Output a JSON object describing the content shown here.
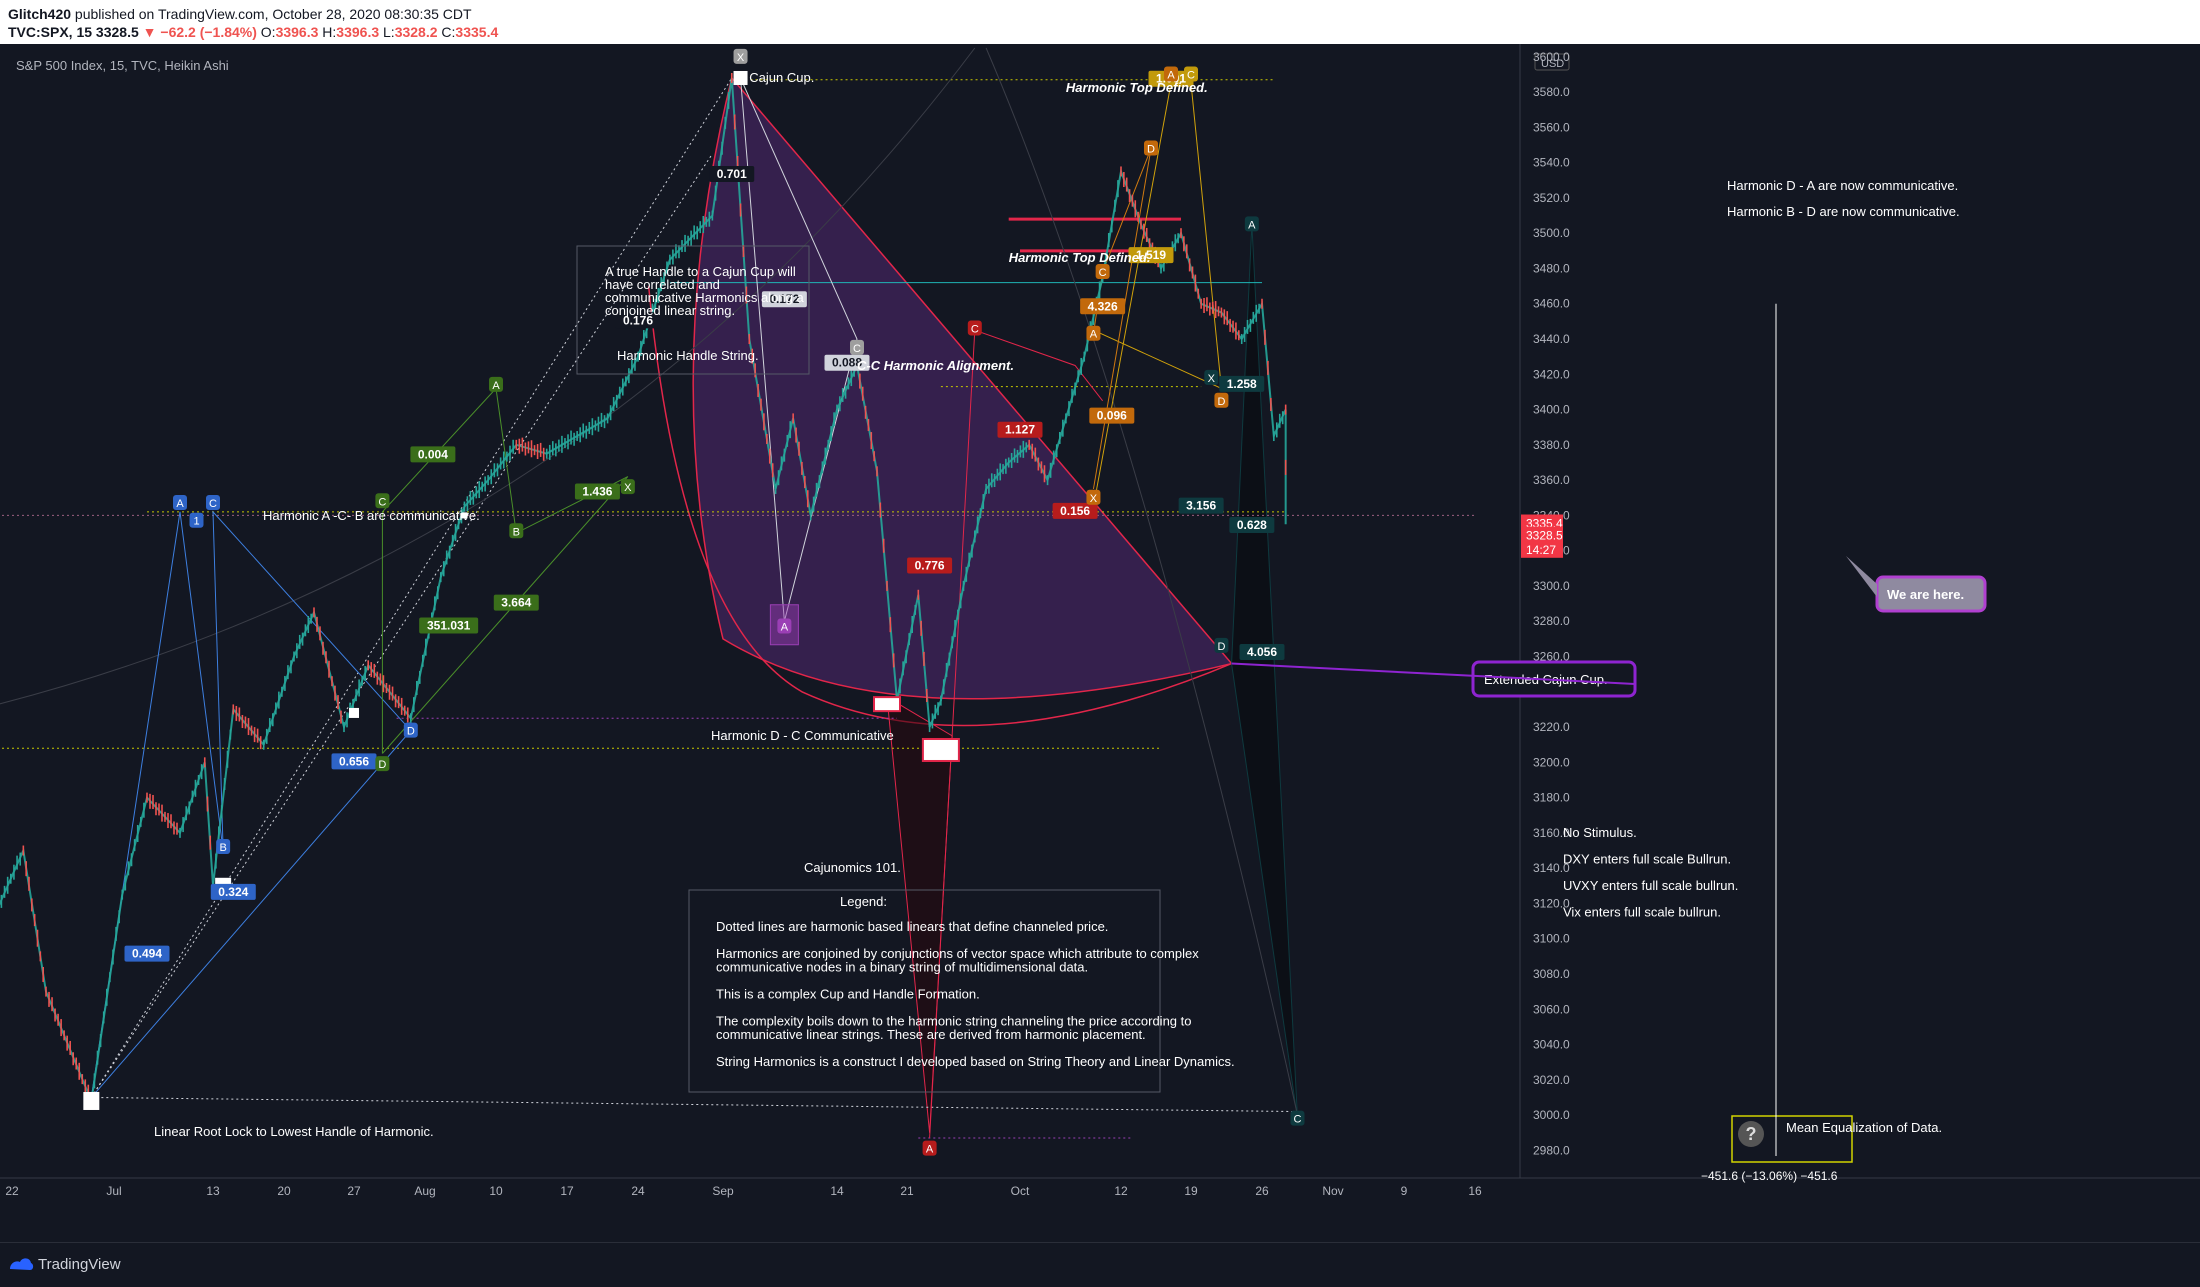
{
  "header": {
    "publisher": "Glitch420",
    "published_on": " published on TradingView.com, October 28, 2020 08:30:35 CDT",
    "symbol": "TVC:SPX, 15",
    "last": "3328.5",
    "change": "▼ −62.2 (−1.84%)",
    "o_label": "O:",
    "o": "3396.3",
    "h_label": "H:",
    "h": "3396.3",
    "l_label": "L:",
    "l": "3328.2",
    "c_label": "C:",
    "c": "3335.4"
  },
  "chart_title": "S&P 500 Index, 15, TVC, Heikin Ashi",
  "currency": "USD",
  "footer_brand": "TradingView",
  "colors": {
    "background": "#131722",
    "up": "#26a69a",
    "down": "#ef5350",
    "harmonic_blue": "#3d7fe0",
    "harmonic_green": "#4a8f2a",
    "harmonic_orange": "#d17a10",
    "cup_purple": "#8e3bbf",
    "cup_red": "#e2264a",
    "price_red": "#f23645"
  },
  "chart_data": {
    "type": "candlestick",
    "style": "Heikin Ashi",
    "ylim": [
      2970,
      3605
    ],
    "yticks": [
      2980,
      3000,
      3020,
      3040,
      3060,
      3080,
      3100,
      3120,
      3140,
      3160,
      3180,
      3200,
      3220,
      3240,
      3260,
      3280,
      3300,
      3320,
      3340,
      3360,
      3380,
      3400,
      3420,
      3440,
      3460,
      3480,
      3500,
      3520,
      3540,
      3560,
      3580,
      3600
    ],
    "xticks": [
      "22",
      "Jul",
      "13",
      "20",
      "27",
      "Aug",
      "10",
      "17",
      "24",
      "Sep",
      "14",
      "21",
      "Oct",
      "12",
      "19",
      "26",
      "Nov",
      "9",
      "16"
    ],
    "price_path": [
      {
        "t": "06-20",
        "p": 3110
      },
      {
        "t": "06-23",
        "p": 3150
      },
      {
        "t": "06-25",
        "p": 3070
      },
      {
        "t": "06-29",
        "p": 3008
      },
      {
        "t": "07-02",
        "p": 3125
      },
      {
        "t": "07-05",
        "p": 3180
      },
      {
        "t": "07-09",
        "p": 3160
      },
      {
        "t": "07-12",
        "p": 3200
      },
      {
        "t": "07-13",
        "p": 3130
      },
      {
        "t": "07-15",
        "p": 3230
      },
      {
        "t": "07-18",
        "p": 3210
      },
      {
        "t": "07-21",
        "p": 3260
      },
      {
        "t": "07-23",
        "p": 3285
      },
      {
        "t": "07-26",
        "p": 3220
      },
      {
        "t": "07-28",
        "p": 3255
      },
      {
        "t": "07-31",
        "p": 3225
      },
      {
        "t": "08-03",
        "p": 3305
      },
      {
        "t": "08-06",
        "p": 3345
      },
      {
        "t": "08-09",
        "p": 3360
      },
      {
        "t": "08-12",
        "p": 3380
      },
      {
        "t": "08-15",
        "p": 3375
      },
      {
        "t": "08-18",
        "p": 3385
      },
      {
        "t": "08-21",
        "p": 3395
      },
      {
        "t": "08-24",
        "p": 3430
      },
      {
        "t": "08-27",
        "p": 3485
      },
      {
        "t": "08-31",
        "p": 3510
      },
      {
        "t": "09-02",
        "p": 3588
      },
      {
        "t": "09-04",
        "p": 3440
      },
      {
        "t": "09-07",
        "p": 3355
      },
      {
        "t": "09-09",
        "p": 3395
      },
      {
        "t": "09-11",
        "p": 3340
      },
      {
        "t": "09-14",
        "p": 3400
      },
      {
        "t": "09-16",
        "p": 3425
      },
      {
        "t": "09-18",
        "p": 3365
      },
      {
        "t": "09-19",
        "p": 3300
      },
      {
        "t": "09-20",
        "p": 3235
      },
      {
        "t": "09-22",
        "p": 3295
      },
      {
        "t": "09-23",
        "p": 3220
      },
      {
        "t": "09-24",
        "p": 3235
      },
      {
        "t": "09-26",
        "p": 3300
      },
      {
        "t": "09-28",
        "p": 3355
      },
      {
        "t": "09-30",
        "p": 3370
      },
      {
        "t": "10-02",
        "p": 3380
      },
      {
        "t": "10-04",
        "p": 3360
      },
      {
        "t": "10-06",
        "p": 3395
      },
      {
        "t": "10-08",
        "p": 3430
      },
      {
        "t": "10-10",
        "p": 3475
      },
      {
        "t": "10-12",
        "p": 3535
      },
      {
        "t": "10-14",
        "p": 3505
      },
      {
        "t": "10-16",
        "p": 3480
      },
      {
        "t": "10-18",
        "p": 3500
      },
      {
        "t": "10-20",
        "p": 3460
      },
      {
        "t": "10-22",
        "p": 3455
      },
      {
        "t": "10-24",
        "p": 3440
      },
      {
        "t": "10-26",
        "p": 3460
      },
      {
        "t": "10-27",
        "p": 3385
      },
      {
        "t": "10-28",
        "p": 3400
      },
      {
        "t": "10-28",
        "p": 3335
      }
    ],
    "price_labels": [
      {
        "value": 3335.4,
        "text": "3335.4",
        "color": "#f23645"
      },
      {
        "value": 3320.5,
        "text": "14:27",
        "color": "#f23645"
      },
      {
        "value": 3328.5,
        "text": "3328.5",
        "color": "#f23645"
      }
    ]
  },
  "annotations": {
    "cajun_cup": "Cajun Cup.",
    "harmonic_top_defined_1": "Harmonic Top Defined.",
    "harmonic_top_defined_2": "Harmonic Top Defined.",
    "cc_alignment": "C-C Harmonic Alignment.",
    "da_comm": "Harmonic D - A are now communicative.",
    "bd_comm": "Harmonic B - D are now communicative.",
    "acb_comm": "Harmonic A -C- B are communicative.",
    "handle_note": [
      "A true Handle to a Cajun Cup will",
      "have correlated and",
      "communicative Harmonics along a",
      "conjoined linear string."
    ],
    "handle_string": "Harmonic Handle String.",
    "dc_comm": "Harmonic D - C Communicative",
    "extended_cup": "Extended Cajun Cup.",
    "we_are_here": "We are here.",
    "cajunomics": "Cajunomics 101.",
    "legend_title": "Legend:",
    "legend_lines": [
      "Dotted lines are harmonic based linears that define channeled price.",
      "",
      "Harmonics are conjoined by conjunctions of vector space which attribute to complex",
      "communicative nodes in a binary string of multidimensional data.",
      "",
      "This is a complex Cup and Handle Formation.",
      "",
      "The complexity boils down to the harmonic string channeling the price according to",
      "communicative linear strings. These are derived from harmonic placement.",
      "",
      "String Harmonics is a construct I developed based on String Theory and Linear Dynamics."
    ],
    "linear_root": "Linear Root Lock to Lowest Handle of Harmonic.",
    "no_stimulus": [
      "No Stimulus.",
      "DXY enters full scale Bullrun.",
      "UVXY enters full scale bullrun.",
      "Vix enters full scale bullrun."
    ],
    "mean_eq": "Mean Equalization of Data.",
    "measure": "−451.6 (−13.06%) −451.6"
  },
  "ratio_labels": [
    {
      "text": "0.701",
      "c": "#ffffff",
      "bg": "#131722",
      "d": "09-02",
      "p": 3533
    },
    {
      "text": "0.176",
      "c": "#ffffff",
      "bg": "#131722",
      "d": "08-24",
      "p": 3450
    },
    {
      "text": "0.172",
      "c": "#131722",
      "bg": "#d1d4dc",
      "d": "09-08",
      "p": 3462
    },
    {
      "text": "0.004",
      "c": "#ffffff",
      "bg": "#3a6e1a",
      "d": "08-02",
      "p": 3374
    },
    {
      "text": "1.436",
      "c": "#ffffff",
      "bg": "#3a6e1a",
      "d": "08-20",
      "p": 3353
    },
    {
      "text": "3.664",
      "c": "#ffffff",
      "bg": "#3a6e1a",
      "d": "08-12",
      "p": 3290
    },
    {
      "text": "351.031",
      "c": "#ffffff",
      "bg": "#3a6e1a",
      "d": "08-04",
      "p": 3277
    },
    {
      "text": "0.656",
      "c": "#ffffff",
      "bg": "#2e64c7",
      "d": "07-27",
      "p": 3200
    },
    {
      "text": "0.494",
      "c": "#ffffff",
      "bg": "#2e64c7",
      "d": "07-05",
      "p": 3091
    },
    {
      "text": "0.324",
      "c": "#ffffff",
      "bg": "#2e64c7",
      "d": "07-15",
      "p": 3126
    },
    {
      "text": "0.088",
      "c": "#131722",
      "bg": "#d1d4dc",
      "d": "09-15",
      "p": 3426
    },
    {
      "text": "1.127",
      "c": "#ffffff",
      "bg": "#b71c1c",
      "d": "10-01",
      "p": 3388
    },
    {
      "text": "0.156",
      "c": "#ffffff",
      "bg": "#b71c1c",
      "d": "10-07",
      "p": 3342
    },
    {
      "text": "0.776",
      "c": "#ffffff",
      "bg": "#b71c1c",
      "d": "09-23",
      "p": 3311
    },
    {
      "text": "4.326",
      "c": "#ffffff",
      "bg": "#c2690b",
      "d": "10-10",
      "p": 3458
    },
    {
      "text": "0.096",
      "c": "#ffffff",
      "bg": "#c2690b",
      "d": "10-11",
      "p": 3396
    },
    {
      "text": "1.001",
      "c": "#ffffff",
      "bg": "#c29a0b",
      "d": "10-17",
      "p": 3587
    },
    {
      "text": "1.519",
      "c": "#ffffff",
      "bg": "#c29a0b",
      "d": "10-15",
      "p": 3487
    },
    {
      "text": "1.258",
      "c": "#ffffff",
      "bg": "#0e3a3f",
      "d": "10-24",
      "p": 3414
    },
    {
      "text": "3.156",
      "c": "#ffffff",
      "bg": "#0e3a3f",
      "d": "10-20",
      "p": 3345
    },
    {
      "text": "0.628",
      "c": "#ffffff",
      "bg": "#0e3a3f",
      "d": "10-25",
      "p": 3334
    },
    {
      "text": "4.056",
      "c": "#ffffff",
      "bg": "#0e3a3f",
      "d": "10-26",
      "p": 3262
    }
  ],
  "node_labels": [
    {
      "text": "A",
      "bg": "#2e64c7",
      "d": "07-09",
      "p": 3347
    },
    {
      "text": "1",
      "bg": "#2e64c7",
      "d": "07-11",
      "p": 3337
    },
    {
      "text": "C",
      "bg": "#2e64c7",
      "d": "07-13",
      "p": 3347
    },
    {
      "text": "B",
      "bg": "#2e64c7",
      "d": "07-14",
      "p": 3152
    },
    {
      "text": "D",
      "bg": "#2e64c7",
      "d": "07-31",
      "p": 3218
    },
    {
      "text": "A",
      "bg": "#3a6e1a",
      "d": "08-10",
      "p": 3414
    },
    {
      "text": "C",
      "bg": "#3a6e1a",
      "d": "07-29",
      "p": 3348
    },
    {
      "text": "B",
      "bg": "#3a6e1a",
      "d": "08-12",
      "p": 3331
    },
    {
      "text": "D",
      "bg": "#3a6e1a",
      "d": "07-29",
      "p": 3199
    },
    {
      "text": "X",
      "bg": "#3a6e1a",
      "d": "08-23",
      "p": 3356
    },
    {
      "text": "X",
      "bg": "#9e9e9e",
      "d": "09-03",
      "p": 3600
    },
    {
      "text": "C",
      "bg": "#9e9e9e",
      "d": "09-16",
      "p": 3435
    },
    {
      "text": "A",
      "bg": "#9b3fb5",
      "d": "09-08",
      "p": 3277
    },
    {
      "text": "A",
      "bg": "#c2690b",
      "d": "10-17",
      "p": 3590
    },
    {
      "text": "C",
      "bg": "#c29a0b",
      "d": "10-19",
      "p": 3590
    },
    {
      "text": "D",
      "bg": "#c2690b",
      "d": "10-15",
      "p": 3548
    },
    {
      "text": "C",
      "bg": "#c2690b",
      "d": "10-10",
      "p": 3478
    },
    {
      "text": "A",
      "bg": "#c2690b",
      "d": "10-09",
      "p": 3443
    },
    {
      "text": "X",
      "bg": "#c2690b",
      "d": "10-09",
      "p": 3350
    },
    {
      "text": "D",
      "bg": "#c2690b",
      "d": "10-22",
      "p": 3405
    },
    {
      "text": "C",
      "bg": "#b71c1c",
      "d": "09-27",
      "p": 3446
    },
    {
      "text": "A",
      "bg": "#b71c1c",
      "d": "09-23",
      "p": 2981
    },
    {
      "text": "A",
      "bg": "#0e3a3f",
      "d": "10-25",
      "p": 3505
    },
    {
      "text": "D",
      "bg": "#0e3a3f",
      "d": "10-22",
      "p": 3266
    },
    {
      "text": "X",
      "bg": "#0e3a3f",
      "d": "10-21",
      "p": 3418
    },
    {
      "text": "C",
      "bg": "#0e3a3f",
      "d": "10-29",
      "p": 2998
    }
  ]
}
